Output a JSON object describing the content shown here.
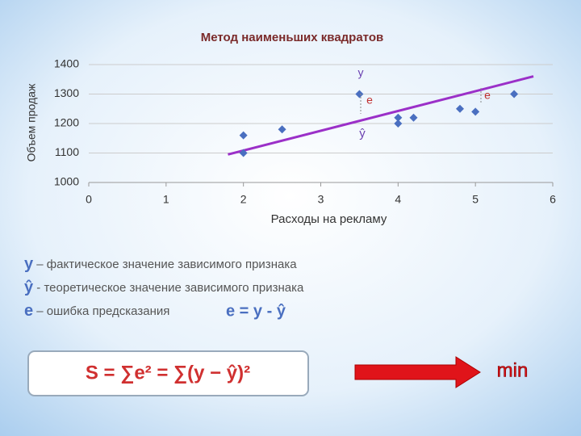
{
  "chart_data": {
    "type": "scatter",
    "title": "Метод наименьших квадратов",
    "x_label": "Расходы на рекламу",
    "y_label": "Объем продаж",
    "xlim": [
      0,
      6
    ],
    "xticks": [
      0,
      1,
      2,
      3,
      4,
      5,
      6
    ],
    "ylim": [
      1000,
      1400
    ],
    "yticks": [
      1000,
      1100,
      1200,
      1300,
      1400
    ],
    "series": [
      {
        "color": "#4a6fc0",
        "x": [
          2,
          2,
          2.5,
          3.5,
          4,
          4,
          4.2,
          4.8,
          5,
          5.5
        ],
        "values": [
          1160,
          1100,
          1180,
          1300,
          1220,
          1200,
          1220,
          1250,
          1240,
          1300
        ]
      }
    ],
    "trend_line": {
      "color": "#9b30c8",
      "x": [
        1.8,
        5.75
      ],
      "values": [
        1095,
        1360
      ]
    },
    "annotations": [
      "y",
      "e",
      "e",
      "ŷ"
    ]
  },
  "definitions": [
    {
      "symbol": "y",
      "text": "– фактическое значение зависимого признака"
    },
    {
      "symbol": "ŷ",
      "text": "- теоретическое значение зависимого признака"
    },
    {
      "symbol": "e",
      "text": "– ошибка предсказания"
    }
  ],
  "equation": "e = y - ŷ",
  "formula": "S = ∑e² = ∑(y − ŷ)²",
  "arrow_label": "min"
}
